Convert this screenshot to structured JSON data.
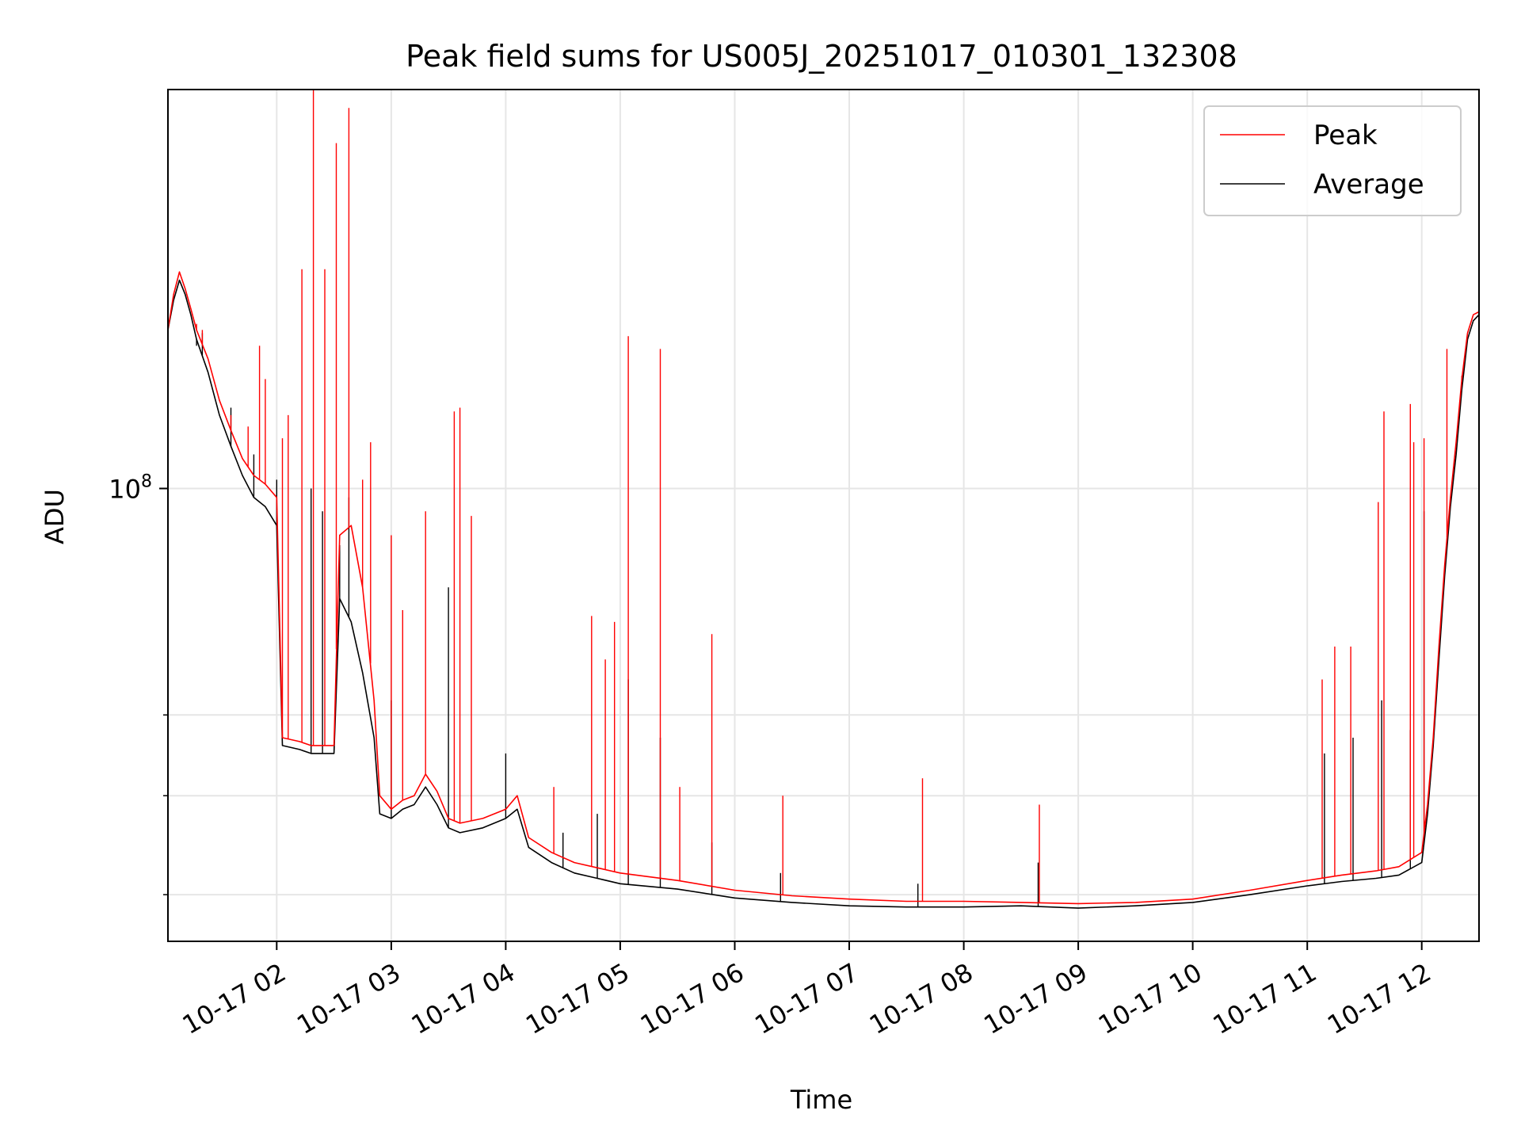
{
  "chart_data": {
    "type": "line",
    "title": "Peak field sums for US005J_20251017_010301_132308",
    "xlabel": "Time",
    "ylabel": "ADU",
    "yscale": "log",
    "ylim": [
      36000000,
      246000000
    ],
    "xlim_hours": [
      1.05,
      12.5
    ],
    "grid": true,
    "legend_position": "top-right",
    "y_major_tick": {
      "value": 100000000,
      "base": "10",
      "exp": "8"
    },
    "y_minor_ticks": [
      40000000,
      50000000,
      60000000
    ],
    "x_ticks": [
      {
        "hour": 2,
        "label": "10-17 02"
      },
      {
        "hour": 3,
        "label": "10-17 03"
      },
      {
        "hour": 4,
        "label": "10-17 04"
      },
      {
        "hour": 5,
        "label": "10-17 05"
      },
      {
        "hour": 6,
        "label": "10-17 06"
      },
      {
        "hour": 7,
        "label": "10-17 07"
      },
      {
        "hour": 8,
        "label": "10-17 08"
      },
      {
        "hour": 9,
        "label": "10-17 09"
      },
      {
        "hour": 10,
        "label": "10-17 10"
      },
      {
        "hour": 11,
        "label": "10-17 11"
      },
      {
        "hour": 12,
        "label": "10-17 12"
      }
    ],
    "series": [
      {
        "name": "Average",
        "color": "#000000",
        "points": [
          [
            1.05,
            143000000
          ],
          [
            1.1,
            153000000
          ],
          [
            1.15,
            160000000
          ],
          [
            1.2,
            155000000
          ],
          [
            1.25,
            148000000
          ],
          [
            1.3,
            140000000
          ],
          [
            1.4,
            130000000
          ],
          [
            1.5,
            118000000
          ],
          [
            1.6,
            110000000
          ],
          [
            1.7,
            103000000
          ],
          [
            1.8,
            98000000
          ],
          [
            1.9,
            96000000
          ],
          [
            2.0,
            92000000
          ],
          [
            2.05,
            56000000
          ],
          [
            2.2,
            55500000
          ],
          [
            2.3,
            55000000
          ],
          [
            2.5,
            55000000
          ],
          [
            2.55,
            78000000
          ],
          [
            2.65,
            74000000
          ],
          [
            2.75,
            66000000
          ],
          [
            2.85,
            57000000
          ],
          [
            2.9,
            48000000
          ],
          [
            3.0,
            47500000
          ],
          [
            3.1,
            48500000
          ],
          [
            3.2,
            49000000
          ],
          [
            3.3,
            51000000
          ],
          [
            3.4,
            49000000
          ],
          [
            3.5,
            46500000
          ],
          [
            3.6,
            46000000
          ],
          [
            3.8,
            46500000
          ],
          [
            4.0,
            47500000
          ],
          [
            4.1,
            48500000
          ],
          [
            4.2,
            44500000
          ],
          [
            4.4,
            43000000
          ],
          [
            4.6,
            42000000
          ],
          [
            4.8,
            41500000
          ],
          [
            5.0,
            41000000
          ],
          [
            5.5,
            40500000
          ],
          [
            6.0,
            39700000
          ],
          [
            6.5,
            39300000
          ],
          [
            7.0,
            39000000
          ],
          [
            7.5,
            38900000
          ],
          [
            8.0,
            38900000
          ],
          [
            8.5,
            39000000
          ],
          [
            9.0,
            38800000
          ],
          [
            9.5,
            39000000
          ],
          [
            10.0,
            39300000
          ],
          [
            10.5,
            40000000
          ],
          [
            11.0,
            40800000
          ],
          [
            11.3,
            41200000
          ],
          [
            11.6,
            41500000
          ],
          [
            11.8,
            41800000
          ],
          [
            12.0,
            43000000
          ],
          [
            12.05,
            48000000
          ],
          [
            12.1,
            56000000
          ],
          [
            12.15,
            68000000
          ],
          [
            12.2,
            82000000
          ],
          [
            12.25,
            96000000
          ],
          [
            12.3,
            108000000
          ],
          [
            12.35,
            125000000
          ],
          [
            12.4,
            140000000
          ],
          [
            12.45,
            146000000
          ],
          [
            12.5,
            148000000
          ]
        ],
        "spikes": [
          [
            1.3,
            138000000
          ],
          [
            1.35,
            142000000
          ],
          [
            1.6,
            120000000
          ],
          [
            1.8,
            108000000
          ],
          [
            2.0,
            102000000
          ],
          [
            2.3,
            100000000
          ],
          [
            2.4,
            95000000
          ],
          [
            2.55,
            88000000
          ],
          [
            2.63,
            98000000
          ],
          [
            3.0,
            62000000
          ],
          [
            3.5,
            80000000
          ],
          [
            4.0,
            55000000
          ],
          [
            4.5,
            46000000
          ],
          [
            4.8,
            48000000
          ],
          [
            5.07,
            65000000
          ],
          [
            5.35,
            57000000
          ],
          [
            5.8,
            45000000
          ],
          [
            6.4,
            42000000
          ],
          [
            7.6,
            41000000
          ],
          [
            8.65,
            43000000
          ],
          [
            11.15,
            55000000
          ],
          [
            11.4,
            57000000
          ],
          [
            11.65,
            62000000
          ],
          [
            11.9,
            58000000
          ],
          [
            12.02,
            95000000
          ]
        ]
      },
      {
        "name": "Peak",
        "color": "#ff0000",
        "points": [
          [
            1.05,
            143000000
          ],
          [
            1.1,
            155000000
          ],
          [
            1.15,
            163000000
          ],
          [
            1.2,
            157000000
          ],
          [
            1.25,
            150000000
          ],
          [
            1.3,
            143000000
          ],
          [
            1.4,
            134000000
          ],
          [
            1.5,
            122000000
          ],
          [
            1.6,
            114000000
          ],
          [
            1.7,
            107000000
          ],
          [
            1.8,
            103000000
          ],
          [
            1.9,
            101000000
          ],
          [
            2.0,
            98000000
          ],
          [
            2.05,
            57000000
          ],
          [
            2.2,
            56500000
          ],
          [
            2.3,
            56000000
          ],
          [
            2.5,
            56000000
          ],
          [
            2.55,
            90000000
          ],
          [
            2.65,
            92000000
          ],
          [
            2.75,
            80000000
          ],
          [
            2.85,
            62000000
          ],
          [
            2.9,
            50000000
          ],
          [
            3.0,
            48500000
          ],
          [
            3.1,
            49500000
          ],
          [
            3.2,
            50000000
          ],
          [
            3.3,
            52500000
          ],
          [
            3.4,
            50500000
          ],
          [
            3.5,
            47500000
          ],
          [
            3.6,
            47000000
          ],
          [
            3.8,
            47500000
          ],
          [
            4.0,
            48500000
          ],
          [
            4.1,
            50000000
          ],
          [
            4.2,
            45500000
          ],
          [
            4.4,
            44000000
          ],
          [
            4.6,
            43000000
          ],
          [
            4.8,
            42500000
          ],
          [
            5.0,
            42000000
          ],
          [
            5.5,
            41300000
          ],
          [
            6.0,
            40400000
          ],
          [
            6.5,
            39900000
          ],
          [
            7.0,
            39600000
          ],
          [
            7.5,
            39400000
          ],
          [
            8.0,
            39400000
          ],
          [
            8.5,
            39300000
          ],
          [
            9.0,
            39200000
          ],
          [
            9.5,
            39300000
          ],
          [
            10.0,
            39600000
          ],
          [
            10.5,
            40400000
          ],
          [
            11.0,
            41300000
          ],
          [
            11.3,
            41800000
          ],
          [
            11.6,
            42200000
          ],
          [
            11.8,
            42600000
          ],
          [
            12.0,
            44000000
          ],
          [
            12.05,
            49000000
          ],
          [
            12.1,
            57000000
          ],
          [
            12.15,
            70000000
          ],
          [
            12.2,
            84000000
          ],
          [
            12.25,
            98000000
          ],
          [
            12.3,
            111000000
          ],
          [
            12.35,
            128000000
          ],
          [
            12.4,
            142000000
          ],
          [
            12.45,
            148000000
          ],
          [
            12.5,
            149000000
          ]
        ],
        "spikes": [
          [
            1.3,
            145000000
          ],
          [
            1.35,
            143000000
          ],
          [
            1.5,
            122000000
          ],
          [
            1.6,
            118000000
          ],
          [
            1.75,
            115000000
          ],
          [
            1.85,
            138000000
          ],
          [
            1.9,
            128000000
          ],
          [
            2.05,
            112000000
          ],
          [
            2.1,
            118000000
          ],
          [
            2.22,
            164000000
          ],
          [
            2.32,
            246000000
          ],
          [
            2.42,
            164000000
          ],
          [
            2.52,
            218000000
          ],
          [
            2.63,
            236000000
          ],
          [
            2.75,
            102000000
          ],
          [
            2.82,
            111000000
          ],
          [
            3.0,
            90000000
          ],
          [
            3.1,
            76000000
          ],
          [
            3.3,
            95000000
          ],
          [
            3.55,
            119000000
          ],
          [
            3.6,
            120000000
          ],
          [
            3.7,
            94000000
          ],
          [
            4.42,
            51000000
          ],
          [
            4.75,
            75000000
          ],
          [
            4.87,
            68000000
          ],
          [
            4.95,
            74000000
          ],
          [
            5.07,
            141000000
          ],
          [
            5.35,
            137000000
          ],
          [
            5.52,
            51000000
          ],
          [
            5.8,
            72000000
          ],
          [
            6.42,
            50000000
          ],
          [
            7.64,
            52000000
          ],
          [
            8.66,
            49000000
          ],
          [
            11.13,
            65000000
          ],
          [
            11.24,
            70000000
          ],
          [
            11.38,
            70000000
          ],
          [
            11.62,
            97000000
          ],
          [
            11.67,
            119000000
          ],
          [
            11.9,
            121000000
          ],
          [
            11.93,
            111000000
          ],
          [
            12.02,
            112000000
          ],
          [
            12.22,
            137000000
          ],
          [
            12.35,
            129000000
          ]
        ]
      }
    ]
  }
}
